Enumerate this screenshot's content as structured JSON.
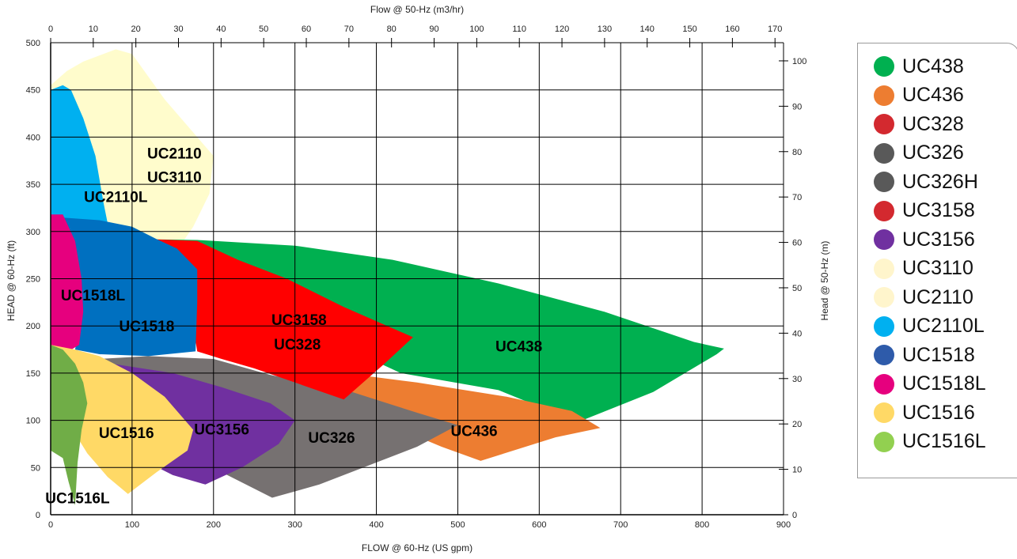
{
  "chart_data": {
    "type": "area",
    "x_top_label": "Flow @ 50-Hz (m3/hr)",
    "x_bottom_label": "FLOW @ 60-Hz (US gpm)",
    "y_left_label": "HEAD @ 60-Hz (ft)",
    "y_right_label": "Head @ 50-Hz (m)",
    "x_bottom_range": [
      0,
      900
    ],
    "y_left_range": [
      0,
      500
    ],
    "x_top_range": [
      0,
      172
    ],
    "y_right_range": [
      0,
      104
    ],
    "x_bottom_ticks": [
      0,
      100,
      200,
      300,
      400,
      500,
      600,
      700,
      800,
      900
    ],
    "y_left_ticks": [
      0,
      50,
      100,
      150,
      200,
      250,
      300,
      350,
      400,
      450,
      500
    ],
    "x_top_ticks": [
      0,
      10,
      20,
      30,
      40,
      50,
      60,
      70,
      80,
      90,
      100,
      110,
      120,
      130,
      140,
      150,
      160,
      170
    ],
    "y_right_ticks": [
      0,
      10,
      20,
      30,
      40,
      50,
      60,
      70,
      80,
      90,
      100
    ],
    "grid": true,
    "legend_position": "right",
    "series": [
      {
        "name": "UC2110",
        "color": "#FFFCCC",
        "label": "UC2110",
        "points": [
          [
            0,
            455
          ],
          [
            20,
            470
          ],
          [
            40,
            480
          ],
          [
            80,
            493
          ],
          [
            100,
            488
          ],
          [
            140,
            440
          ],
          [
            180,
            400
          ],
          [
            200,
            380
          ],
          [
            195,
            340
          ],
          [
            175,
            305
          ],
          [
            155,
            280
          ],
          [
            100,
            275
          ],
          [
            60,
            300
          ],
          [
            0,
            320
          ]
        ]
      },
      {
        "name": "UC2110L",
        "color": "#00B0F0",
        "label": "UC2110L",
        "points": [
          [
            0,
            450
          ],
          [
            15,
            455
          ],
          [
            25,
            450
          ],
          [
            40,
            420
          ],
          [
            55,
            380
          ],
          [
            65,
            330
          ],
          [
            72,
            300
          ],
          [
            0,
            300
          ]
        ]
      },
      {
        "name": "UC438",
        "color": "#00B050",
        "label": "UC438",
        "points": [
          [
            100,
            292
          ],
          [
            180,
            291
          ],
          [
            300,
            285
          ],
          [
            420,
            270
          ],
          [
            550,
            245
          ],
          [
            680,
            215
          ],
          [
            790,
            183
          ],
          [
            827,
            176
          ],
          [
            818,
            170
          ],
          [
            740,
            130
          ],
          [
            647,
            98
          ],
          [
            550,
            132
          ],
          [
            430,
            150
          ],
          [
            380,
            170
          ],
          [
            300,
            210
          ],
          [
            200,
            250
          ],
          [
            130,
            280
          ]
        ]
      },
      {
        "name": "UC436",
        "color": "#ED7D31",
        "label": "UC436",
        "points": [
          [
            360,
            150
          ],
          [
            450,
            140
          ],
          [
            560,
            125
          ],
          [
            640,
            110
          ],
          [
            675,
            92
          ],
          [
            620,
            82
          ],
          [
            528,
            57
          ],
          [
            480,
            72
          ],
          [
            430,
            90
          ],
          [
            390,
            115
          ],
          [
            355,
            130
          ]
        ]
      },
      {
        "name": "UC326",
        "color": "#767171",
        "label": "UC326",
        "points": [
          [
            60,
            165
          ],
          [
            120,
            168
          ],
          [
            200,
            165
          ],
          [
            270,
            148
          ],
          [
            370,
            130
          ],
          [
            450,
            108
          ],
          [
            500,
            95
          ],
          [
            450,
            72
          ],
          [
            390,
            52
          ],
          [
            330,
            32
          ],
          [
            272,
            18
          ],
          [
            210,
            45
          ],
          [
            160,
            75
          ],
          [
            100,
            110
          ]
        ]
      },
      {
        "name": "UC3158",
        "color": "#FF0000",
        "label": "UC3158",
        "points": [
          [
            120,
            292
          ],
          [
            180,
            290
          ],
          [
            230,
            270
          ],
          [
            290,
            250
          ],
          [
            360,
            220
          ],
          [
            445,
            188
          ],
          [
            410,
            160
          ],
          [
            360,
            122
          ],
          [
            300,
            140
          ],
          [
            250,
            155
          ],
          [
            210,
            165
          ],
          [
            180,
            173
          ],
          [
            175,
            200
          ],
          [
            180,
            250
          ],
          [
            130,
            280
          ]
        ]
      },
      {
        "name": "UC1518",
        "color": "#0070C0",
        "label": "UC1518",
        "points": [
          [
            10,
            315
          ],
          [
            60,
            312
          ],
          [
            100,
            305
          ],
          [
            130,
            292
          ],
          [
            155,
            282
          ],
          [
            180,
            260
          ],
          [
            180,
            225
          ],
          [
            178,
            173
          ],
          [
            120,
            168
          ],
          [
            60,
            170
          ],
          [
            30,
            175
          ],
          [
            35,
            200
          ],
          [
            30,
            250
          ],
          [
            15,
            300
          ]
        ]
      },
      {
        "name": "UC1518L",
        "color": "#E6007E",
        "label": "UC1518L",
        "points": [
          [
            0,
            318
          ],
          [
            15,
            318
          ],
          [
            30,
            290
          ],
          [
            38,
            250
          ],
          [
            40,
            215
          ],
          [
            35,
            180
          ],
          [
            20,
            172
          ],
          [
            0,
            175
          ]
        ]
      },
      {
        "name": "UC3156",
        "color": "#7030A0",
        "label": "UC3156",
        "points": [
          [
            75,
            160
          ],
          [
            150,
            150
          ],
          [
            210,
            135
          ],
          [
            270,
            118
          ],
          [
            300,
            100
          ],
          [
            280,
            75
          ],
          [
            235,
            50
          ],
          [
            190,
            32
          ],
          [
            150,
            42
          ],
          [
            120,
            55
          ],
          [
            90,
            90
          ],
          [
            70,
            130
          ]
        ]
      },
      {
        "name": "UC1516",
        "color": "#FFD966",
        "label": "UC1516",
        "points": [
          [
            0,
            180
          ],
          [
            30,
            175
          ],
          [
            60,
            168
          ],
          [
            100,
            150
          ],
          [
            140,
            125
          ],
          [
            175,
            90
          ],
          [
            168,
            68
          ],
          [
            130,
            45
          ],
          [
            95,
            22
          ],
          [
            70,
            40
          ],
          [
            45,
            65
          ],
          [
            20,
            100
          ],
          [
            0,
            130
          ]
        ]
      },
      {
        "name": "UC1516L",
        "color": "#70AD47",
        "label": "UC1516L",
        "points": [
          [
            0,
            180
          ],
          [
            15,
            175
          ],
          [
            30,
            160
          ],
          [
            40,
            140
          ],
          [
            45,
            118
          ],
          [
            38,
            90
          ],
          [
            33,
            55
          ],
          [
            30,
            10
          ],
          [
            22,
            35
          ],
          [
            15,
            60
          ],
          [
            0,
            68
          ]
        ]
      }
    ],
    "legend": [
      {
        "label": "UC438",
        "color": "#00B050"
      },
      {
        "label": "UC436",
        "color": "#ED7D31"
      },
      {
        "label": "UC328",
        "color": "#D3292F"
      },
      {
        "label": "UC326",
        "color": "#595959"
      },
      {
        "label": "UC326H",
        "color": "#595959"
      },
      {
        "label": "UC3158",
        "color": "#D3292F"
      },
      {
        "label": "UC3156",
        "color": "#7030A0"
      },
      {
        "label": "UC3110",
        "color": "#FFF5CC"
      },
      {
        "label": "UC2110",
        "color": "#FFF5CC"
      },
      {
        "label": "UC2110L",
        "color": "#00B0F0"
      },
      {
        "label": "UC1518",
        "color": "#2E5BAA"
      },
      {
        "label": "UC1518L",
        "color": "#E6007E"
      },
      {
        "label": "UC1516",
        "color": "#FFD966"
      },
      {
        "label": "UC1516L",
        "color": "#92D050"
      }
    ],
    "annotations": [
      {
        "text": "UC2110",
        "x": 152,
        "y": 383
      },
      {
        "text": "UC3110",
        "x": 152,
        "y": 358
      },
      {
        "text": "UC2110L",
        "x": 80,
        "y": 337
      },
      {
        "text": "UC1518L",
        "x": 52,
        "y": 233
      },
      {
        "text": "UC1518",
        "x": 118,
        "y": 200
      },
      {
        "text": "UC3158",
        "x": 305,
        "y": 207
      },
      {
        "text": "UC328",
        "x": 303,
        "y": 181
      },
      {
        "text": "UC438",
        "x": 575,
        "y": 179
      },
      {
        "text": "UC436",
        "x": 520,
        "y": 89
      },
      {
        "text": "UC326",
        "x": 345,
        "y": 82
      },
      {
        "text": "UC3156",
        "x": 210,
        "y": 91
      },
      {
        "text": "UC1516",
        "x": 93,
        "y": 87
      },
      {
        "text": "UC1516L",
        "x": 33,
        "y": 18
      }
    ]
  }
}
